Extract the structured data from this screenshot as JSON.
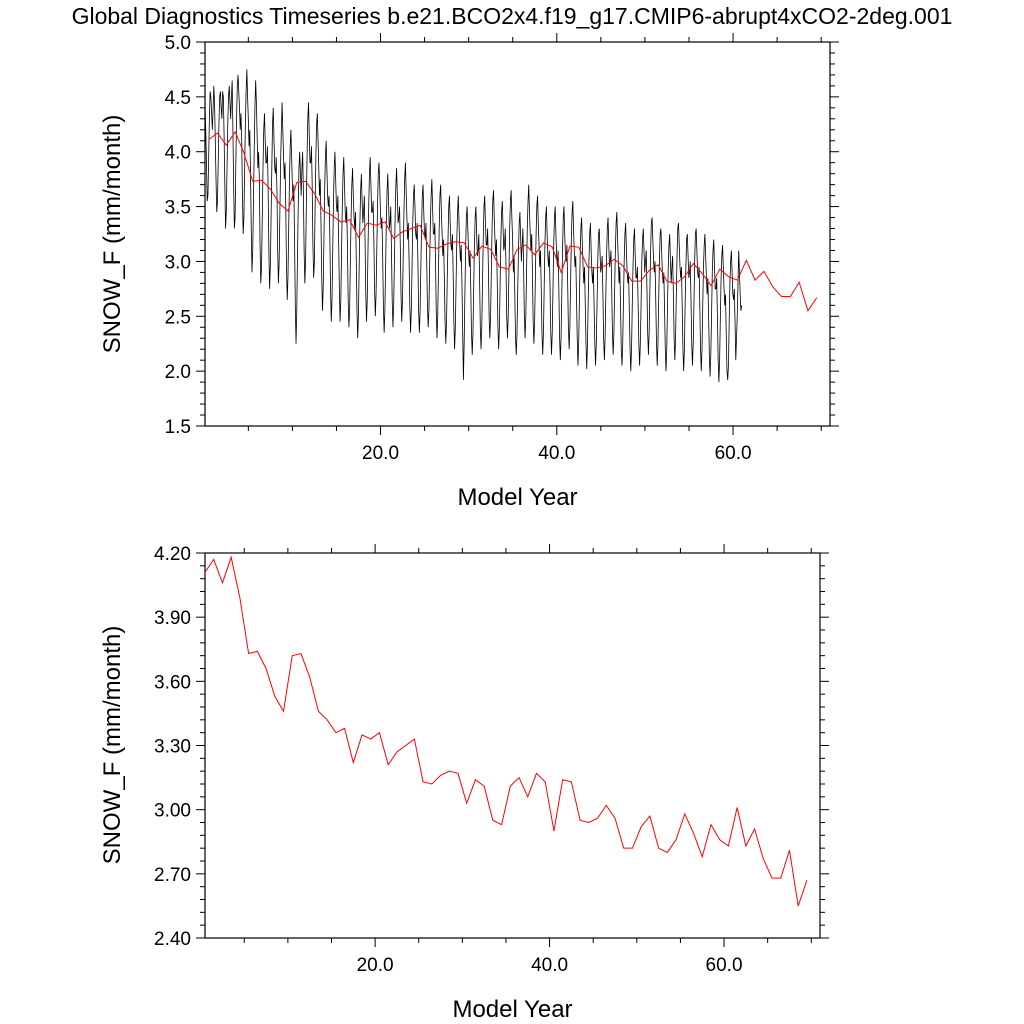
{
  "title": "Global Diagnostics Timeseries b.e21.BCO2x4.f19_g17.CMIP6-abrupt4xCO2-2deg.001",
  "colors": {
    "monthly": "#000000",
    "annual": "#ff0000",
    "axis": "#000000"
  },
  "chart_data": [
    {
      "type": "line",
      "xlabel": "Model Year",
      "ylabel": "SNOW_F (mm/month)",
      "xlim": [
        0.083,
        71
      ],
      "ylim": [
        1.5,
        5.0
      ],
      "xticks": [
        20,
        40,
        60
      ],
      "xtick_labels": [
        "20.0",
        "40.0",
        "60.0"
      ],
      "yticks": [
        1.5,
        2.0,
        2.5,
        3.0,
        3.5,
        4.0,
        4.5,
        5.0
      ],
      "ytick_labels": [
        "1.5",
        "2.0",
        "2.5",
        "3.0",
        "3.5",
        "4.0",
        "4.5",
        "5.0"
      ],
      "series": [
        {
          "name": "monthly",
          "color": "#000000",
          "x_start": 0.083,
          "x_step": 0.0833,
          "values": [
            4.45,
            4.2,
            3.9,
            3.55,
            3.6,
            3.95,
            4.3,
            4.55,
            4.5,
            4.35,
            4.2,
            4.38,
            4.6,
            4.45,
            4.1,
            3.75,
            3.45,
            3.55,
            3.9,
            4.25,
            4.5,
            4.55,
            4.4,
            4.3,
            4.55,
            4.5,
            4.15,
            3.7,
            3.3,
            3.45,
            3.85,
            4.25,
            4.5,
            4.6,
            4.45,
            4.3,
            4.5,
            4.65,
            4.2,
            3.7,
            3.3,
            3.4,
            3.9,
            4.3,
            4.6,
            4.7,
            4.55,
            4.4,
            4.2,
            4.35,
            4.1,
            3.6,
            3.25,
            3.4,
            3.85,
            4.25,
            4.55,
            4.75,
            4.5,
            4.3,
            4.05,
            4.2,
            3.8,
            3.3,
            2.9,
            3.1,
            3.55,
            4.0,
            4.4,
            4.65,
            4.45,
            4.15,
            3.85,
            4.0,
            3.75,
            3.15,
            2.8,
            2.95,
            3.4,
            3.85,
            4.2,
            4.35,
            4.1,
            3.9,
            3.9,
            4.05,
            3.65,
            3.1,
            2.75,
            2.95,
            3.4,
            3.85,
            4.25,
            4.4,
            4.1,
            3.85,
            3.8,
            3.95,
            3.65,
            3.1,
            2.8,
            3.0,
            3.45,
            3.9,
            4.2,
            4.45,
            4.2,
            3.95,
            3.75,
            3.9,
            3.5,
            2.95,
            2.65,
            2.85,
            3.3,
            3.7,
            4.05,
            4.2,
            3.95,
            3.7,
            3.55,
            3.7,
            3.2,
            2.6,
            2.25,
            2.55,
            3.05,
            3.5,
            3.85,
            4.0,
            3.8,
            3.6,
            3.85,
            4.0,
            3.65,
            3.1,
            2.8,
            3.0,
            3.5,
            3.95,
            4.3,
            4.45,
            4.15,
            3.9,
            3.9,
            4.05,
            3.7,
            3.15,
            2.85,
            3.0,
            3.5,
            3.95,
            4.25,
            4.35,
            4.1,
            3.85,
            3.6,
            3.75,
            3.35,
            2.85,
            2.55,
            2.75,
            3.2,
            3.65,
            3.95,
            4.1,
            3.85,
            3.6,
            3.5,
            3.6,
            3.25,
            2.75,
            2.45,
            2.65,
            3.1,
            3.55,
            3.85,
            4.0,
            3.75,
            3.5,
            3.45,
            3.6,
            3.2,
            2.75,
            2.45,
            2.65,
            3.1,
            3.5,
            3.8,
            3.95,
            3.7,
            3.45,
            3.35,
            3.5,
            3.15,
            2.65,
            2.4,
            2.55,
            3.0,
            3.4,
            3.7,
            3.85,
            3.6,
            3.4,
            3.3,
            3.45,
            3.05,
            2.55,
            2.3,
            2.5,
            2.95,
            3.35,
            3.65,
            3.8,
            3.55,
            3.35,
            3.45,
            3.6,
            3.2,
            2.7,
            2.45,
            2.65,
            3.1,
            3.5,
            3.8,
            3.95,
            3.7,
            3.45,
            3.45,
            3.55,
            3.2,
            2.75,
            2.5,
            2.7,
            3.1,
            3.5,
            3.8,
            3.9,
            3.7,
            3.45,
            3.3,
            3.4,
            3.05,
            2.6,
            2.35,
            2.55,
            2.95,
            3.35,
            3.65,
            3.8,
            3.55,
            3.3,
            3.35,
            3.5,
            3.1,
            2.65,
            2.4,
            2.6,
            3.0,
            3.4,
            3.7,
            3.85,
            3.6,
            3.35,
            3.4,
            3.5,
            3.15,
            2.7,
            2.45,
            2.65,
            3.05,
            3.45,
            3.75,
            3.9,
            3.65,
            3.4,
            3.2,
            3.35,
            3.0,
            2.6,
            2.35,
            2.55,
            2.95,
            3.35,
            3.6,
            3.7,
            3.5,
            3.25,
            3.2,
            3.35,
            3.0,
            2.55,
            2.35,
            2.55,
            2.95,
            3.3,
            3.6,
            3.7,
            3.45,
            3.25,
            3.2,
            3.35,
            3.0,
            2.6,
            2.4,
            2.55,
            2.95,
            3.35,
            3.6,
            3.75,
            3.5,
            3.25,
            3.25,
            3.35,
            3.0,
            2.55,
            2.3,
            2.5,
            2.9,
            3.3,
            3.6,
            3.7,
            3.45,
            3.25,
            3.05,
            3.2,
            2.85,
            2.45,
            2.25,
            2.45,
            2.85,
            3.2,
            3.5,
            3.6,
            3.35,
            3.15,
            3.1,
            3.25,
            2.9,
            2.45,
            2.2,
            2.4,
            2.8,
            3.2,
            3.45,
            3.6,
            3.35,
            3.15,
            3.0,
            3.15,
            2.8,
            2.35,
            1.92,
            2.25,
            2.7,
            3.1,
            3.4,
            3.5,
            3.3,
            3.1,
            2.95,
            3.1,
            2.75,
            2.35,
            2.15,
            2.35,
            2.75,
            3.15,
            3.4,
            3.5,
            3.25,
            3.05,
            3.1,
            3.25,
            2.85,
            2.4,
            2.2,
            2.4,
            2.8,
            3.2,
            3.5,
            3.6,
            3.35,
            3.15,
            3.15,
            3.3,
            2.95,
            2.5,
            2.3,
            2.5,
            2.9,
            3.3,
            3.55,
            3.65,
            3.4,
            3.2,
            3.05,
            3.2,
            2.85,
            2.4,
            2.2,
            2.4,
            2.8,
            3.2,
            3.45,
            3.55,
            3.3,
            3.1,
            3.15,
            3.3,
            2.95,
            2.5,
            2.3,
            2.5,
            2.9,
            3.3,
            3.55,
            3.65,
            3.4,
            3.2,
            2.9,
            3.05,
            2.7,
            2.3,
            2.15,
            2.35,
            2.75,
            3.1,
            3.35,
            3.45,
            3.2,
            3.0,
            3.15,
            3.3,
            2.95,
            2.5,
            2.3,
            2.5,
            2.9,
            3.3,
            3.55,
            3.7,
            3.45,
            3.25,
            3.1,
            3.25,
            2.9,
            2.45,
            2.25,
            2.45,
            2.85,
            3.25,
            3.5,
            3.6,
            3.35,
            3.15,
            2.95,
            3.1,
            2.75,
            2.35,
            2.15,
            2.35,
            2.75,
            3.15,
            3.4,
            3.5,
            3.25,
            3.05,
            2.95,
            3.1,
            2.75,
            2.35,
            2.15,
            2.35,
            2.75,
            3.15,
            3.4,
            3.5,
            3.25,
            3.05,
            2.95,
            3.1,
            2.75,
            2.3,
            2.1,
            2.3,
            2.7,
            3.1,
            3.4,
            3.5,
            3.25,
            3.05,
            3.0,
            3.15,
            2.8,
            2.4,
            2.2,
            2.4,
            2.8,
            3.2,
            3.45,
            3.55,
            3.3,
            3.1,
            2.95,
            3.05,
            2.7,
            2.3,
            2.05,
            2.25,
            2.65,
            3.05,
            3.3,
            3.4,
            3.15,
            2.95,
            2.8,
            2.95,
            2.6,
            2.25,
            2.02,
            2.25,
            2.65,
            3.0,
            3.25,
            3.35,
            3.1,
            2.9,
            2.8,
            2.95,
            2.6,
            2.25,
            2.05,
            2.25,
            2.6,
            3.0,
            3.25,
            3.3,
            3.1,
            2.9,
            2.95,
            3.05,
            2.7,
            2.3,
            2.1,
            2.3,
            2.7,
            3.05,
            3.3,
            3.4,
            3.15,
            2.95,
            3.0,
            3.1,
            2.75,
            2.35,
            2.15,
            2.35,
            2.75,
            3.1,
            3.35,
            3.45,
            3.2,
            3.0,
            2.8,
            2.95,
            2.6,
            2.2,
            2.05,
            2.25,
            2.65,
            3.0,
            3.25,
            3.35,
            3.1,
            2.9,
            2.8,
            2.9,
            2.55,
            2.2,
            2.0,
            2.2,
            2.6,
            2.95,
            3.2,
            3.3,
            3.05,
            2.85,
            2.85,
            2.95,
            2.6,
            2.25,
            2.05,
            2.25,
            2.6,
            3.0,
            3.2,
            3.3,
            3.1,
            2.9,
            3.0,
            3.1,
            2.75,
            2.35,
            2.15,
            2.35,
            2.75,
            3.1,
            3.35,
            3.4,
            3.2,
            3.0,
            2.9,
            3.0,
            2.65,
            2.25,
            2.05,
            2.25,
            2.65,
            3.0,
            3.25,
            3.3,
            3.1,
            2.9,
            2.8,
            2.9,
            2.55,
            2.2,
            2.0,
            2.2,
            2.6,
            2.95,
            3.15,
            3.25,
            3.0,
            2.8,
            2.95,
            3.05,
            2.7,
            2.3,
            2.1,
            2.3,
            2.7,
            3.05,
            3.3,
            3.35,
            3.15,
            2.95,
            2.85,
            2.95,
            2.6,
            2.2,
            2.0,
            2.2,
            2.6,
            2.95,
            3.2,
            3.25,
            3.05,
            2.85,
            2.9,
            3.0,
            2.65,
            2.25,
            2.05,
            2.25,
            2.6,
            3.0,
            3.25,
            3.3,
            3.1,
            2.9,
            2.85,
            2.95,
            2.6,
            2.2,
            2.0,
            2.2,
            2.6,
            2.95,
            3.15,
            3.25,
            3.05,
            2.85,
            2.7,
            2.85,
            2.5,
            2.15,
            1.95,
            2.15,
            2.5,
            2.9,
            3.1,
            3.2,
            2.95,
            2.75,
            2.75,
            2.85,
            2.5,
            2.1,
            1.9,
            2.1,
            2.5,
            2.85,
            3.05,
            3.15,
            2.95,
            2.75,
            2.6,
            2.7,
            2.35,
            2.0,
            1.92,
            2.05,
            2.45,
            2.8,
            3.0,
            3.1,
            2.9,
            2.7,
            2.65,
            2.75,
            2.45,
            2.1,
            2.3,
            2.5,
            2.8,
            3.1,
            2.9,
            2.7,
            2.55,
            2.6
          ]
        },
        {
          "name": "annual mean",
          "color": "#ff0000",
          "x_start": 0.5,
          "x_step": 1.0,
          "values": [
            4.11,
            4.17,
            4.06,
            4.18,
            3.99,
            3.73,
            3.74,
            3.66,
            3.53,
            3.46,
            3.72,
            3.73,
            3.62,
            3.46,
            3.42,
            3.36,
            3.38,
            3.22,
            3.35,
            3.33,
            3.36,
            3.21,
            3.27,
            3.3,
            3.33,
            3.13,
            3.12,
            3.16,
            3.18,
            3.17,
            3.03,
            3.14,
            3.11,
            2.95,
            2.93,
            3.11,
            3.15,
            3.06,
            3.17,
            3.13,
            2.9,
            3.14,
            3.13,
            2.95,
            2.94,
            2.96,
            3.02,
            2.96,
            2.82,
            2.82,
            2.92,
            2.97,
            2.82,
            2.8,
            2.86,
            2.98,
            2.89,
            2.78,
            2.93,
            2.86,
            2.83,
            3.01,
            2.83,
            2.91,
            2.77,
            2.68,
            2.68,
            2.81,
            2.55,
            2.67
          ]
        }
      ]
    },
    {
      "type": "line",
      "xlabel": "Model Year",
      "ylabel": "SNOW_F (mm/month)",
      "xlim": [
        0.5,
        71
      ],
      "ylim": [
        2.4,
        4.2
      ],
      "xticks": [
        20,
        40,
        60
      ],
      "xtick_labels": [
        "20.0",
        "40.0",
        "60.0"
      ],
      "yticks": [
        2.4,
        2.7,
        3.0,
        3.3,
        3.6,
        3.9,
        4.2
      ],
      "ytick_labels": [
        "2.40",
        "2.70",
        "3.00",
        "3.30",
        "3.60",
        "3.90",
        "4.20"
      ],
      "series": [
        {
          "name": "annual mean",
          "color": "#ff0000",
          "x_start": 0.5,
          "x_step": 1.0,
          "values": [
            4.11,
            4.17,
            4.06,
            4.18,
            3.99,
            3.73,
            3.74,
            3.66,
            3.53,
            3.46,
            3.72,
            3.73,
            3.62,
            3.46,
            3.42,
            3.36,
            3.38,
            3.22,
            3.35,
            3.33,
            3.36,
            3.21,
            3.27,
            3.3,
            3.33,
            3.13,
            3.12,
            3.16,
            3.18,
            3.17,
            3.03,
            3.14,
            3.11,
            2.95,
            2.93,
            3.11,
            3.15,
            3.06,
            3.17,
            3.13,
            2.9,
            3.14,
            3.13,
            2.95,
            2.94,
            2.96,
            3.02,
            2.96,
            2.82,
            2.82,
            2.92,
            2.97,
            2.82,
            2.8,
            2.86,
            2.98,
            2.89,
            2.78,
            2.93,
            2.86,
            2.83,
            3.01,
            2.83,
            2.91,
            2.77,
            2.68,
            2.68,
            2.81,
            2.55,
            2.67
          ]
        }
      ]
    }
  ]
}
